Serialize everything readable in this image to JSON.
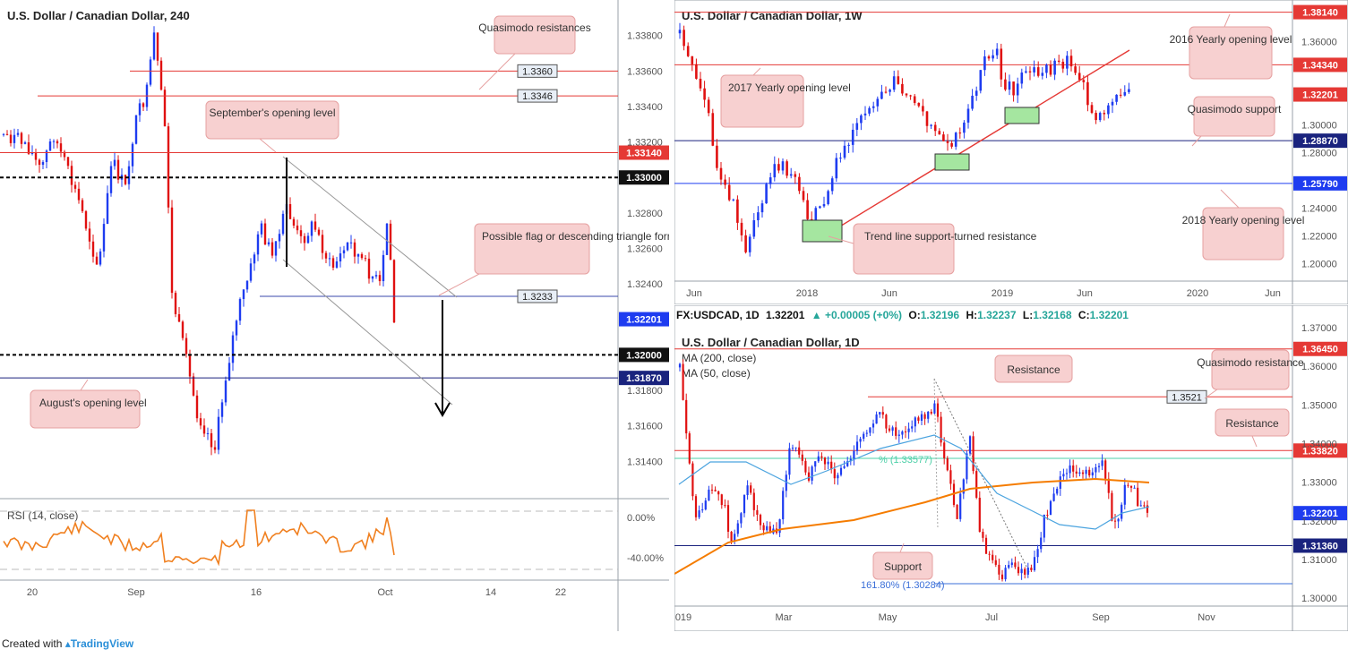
{
  "chart_data": [
    {
      "type": "candlestick",
      "id": "h4",
      "title": "U.S. Dollar / Canadian Dollar, 240",
      "ylim": [
        1.3125,
        1.3395
      ],
      "y_ticks": [
        "1.33800",
        "1.33600",
        "1.33400",
        "1.33200",
        "1.32800",
        "1.32600",
        "1.32400",
        "1.31800",
        "1.31600",
        "1.31400"
      ],
      "x_ticks": [
        "20",
        "Sep",
        "16",
        "Oct",
        "14",
        "22"
      ],
      "levels": [
        {
          "label": "1.3360",
          "value": 1.336,
          "color": "#e53935",
          "style": "solid",
          "tag": "outline"
        },
        {
          "label": "1.3346",
          "value": 1.3346,
          "color": "#e53935",
          "style": "solid",
          "tag": "outline"
        },
        {
          "label": "1.33140",
          "value": 1.3314,
          "color": "#e53935",
          "style": "solid",
          "tag": "red"
        },
        {
          "label": "1.33000",
          "value": 1.33,
          "color": "#000000",
          "style": "dashed",
          "tag": "black"
        },
        {
          "label": "1.3233",
          "value": 1.3233,
          "color": "#3949ab",
          "style": "solid",
          "tag": "outline"
        },
        {
          "label": "1.32201",
          "value": 1.32201,
          "color": "#1e3cf0",
          "style": "none",
          "tag": "blue"
        },
        {
          "label": "1.32000",
          "value": 1.32,
          "color": "#000000",
          "style": "dashed",
          "tag": "black"
        },
        {
          "label": "1.31870",
          "value": 1.3187,
          "color": "#1a237e",
          "style": "solid",
          "tag": "navy"
        }
      ],
      "annotations": [
        "Quasimodo resistances",
        "September's opening level",
        "Possible flag or descending triangle formation",
        "August's opening level"
      ],
      "rsi": {
        "label": "RSI (14, close)",
        "ticks": [
          "0.00%",
          "-40.00%"
        ]
      }
    },
    {
      "type": "candlestick",
      "id": "weekly",
      "title": "U.S. Dollar / Canadian Dollar, 1W",
      "ylim": [
        1.19,
        1.385
      ],
      "y_ticks": [
        "1.36000",
        "1.30000",
        "1.28000",
        "1.24000",
        "1.22000",
        "1.20000"
      ],
      "x_ticks": [
        "Jun",
        "2018",
        "Jun",
        "2019",
        "Jun",
        "2020",
        "Jun"
      ],
      "levels": [
        {
          "label": "1.38140",
          "value": 1.3814,
          "tag": "red"
        },
        {
          "label": "1.34340",
          "value": 1.3434,
          "tag": "red"
        },
        {
          "label": "1.32201",
          "value": 1.32201,
          "tag": "red"
        },
        {
          "label": "1.28870",
          "value": 1.2887,
          "tag": "navy"
        },
        {
          "label": "1.25790",
          "value": 1.2579,
          "tag": "blue"
        }
      ],
      "annotations": [
        "2016 Yearly opening level",
        "2017 Yearly opening level",
        "Quasimodo support",
        "2018 Yearly opening level",
        "Trend line support-turned resistance"
      ]
    },
    {
      "type": "candlestick",
      "id": "daily",
      "title": "U.S. Dollar / Canadian Dollar, 1D",
      "header": {
        "symbol": "FX:USDCAD, 1D",
        "price": "1.32201",
        "change": "▲ +0.00005 (+0%)",
        "o_label": "O:",
        "o": "1.32196",
        "h_label": "H:",
        "h": "1.32237",
        "l_label": "L:",
        "l": "1.32168",
        "c_label": "C:",
        "c": "1.32201"
      },
      "ylim": [
        1.2975,
        1.37
      ],
      "y_ticks": [
        "1.37000",
        "1.36000",
        "1.35000",
        "1.34000",
        "1.33000",
        "1.32000",
        "1.31000",
        "1.30000"
      ],
      "x_ticks": [
        "019",
        "Mar",
        "May",
        "Jul",
        "Sep",
        "Nov"
      ],
      "series": [
        {
          "name": "MA (200, close)"
        },
        {
          "name": "MA (50, close)"
        }
      ],
      "levels": [
        {
          "label": "1.36450",
          "value": 1.3645,
          "tag": "red"
        },
        {
          "label": "1.3521",
          "value": 1.3521,
          "tag": "outline"
        },
        {
          "label": "1.33820",
          "value": 1.3382,
          "tag": "red"
        },
        {
          "label": "1.32201",
          "value": 1.32201,
          "tag": "blue"
        },
        {
          "label": "1.31360",
          "value": 1.3136,
          "tag": "navy"
        }
      ],
      "fib_labels": [
        "% (1.33577)",
        "161.80% (1.30284)"
      ],
      "annotations": [
        "Resistance",
        "Quasimodo resistance",
        "Resistance",
        "Support"
      ]
    }
  ],
  "footer": {
    "created_with": "Created with",
    "brand": "TradingView"
  }
}
